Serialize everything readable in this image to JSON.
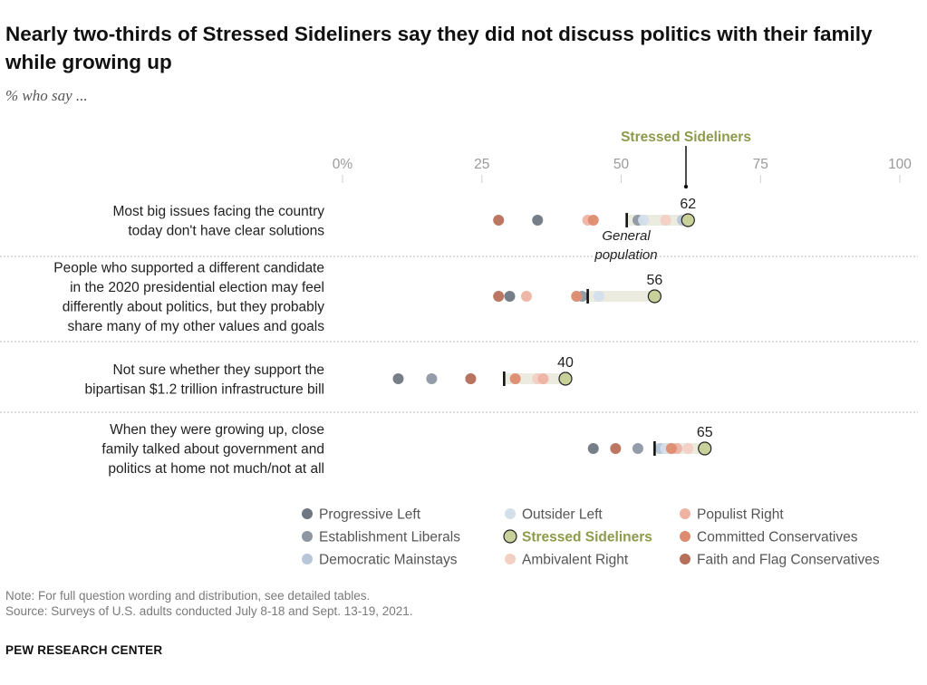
{
  "title": "Nearly two-thirds of Stressed Sideliners say they did not discuss politics with their family while growing up",
  "subtitle": "% who say ...",
  "note": "Note: For full question wording and distribution, see detailed tables.",
  "source": "Source: Surveys of U.S. adults conducted July 8-18 and Sept. 13-19, 2021.",
  "brand": "PEW RESEARCH CENTER",
  "chart_data": {
    "type": "scatter",
    "subtype": "dot-plot",
    "xlim": [
      0,
      100
    ],
    "x_ticks": [
      0,
      25,
      50,
      75,
      100
    ],
    "x_tick_labels": [
      "0%",
      "25",
      "50",
      "75",
      "100"
    ],
    "highlight_label": "Stressed Sideliners",
    "general_population_label": "General population",
    "series": [
      {
        "name": "Progressive Left",
        "color": "#6f7882"
      },
      {
        "name": "Establishment Liberals",
        "color": "#8d97a3"
      },
      {
        "name": "Democratic Mainstays",
        "color": "#b7c7d9"
      },
      {
        "name": "Outsider Left",
        "color": "#d4dfec"
      },
      {
        "name": "Stressed Sideliners",
        "color": "#c9d19b",
        "highlight_color": "#8e9a4b"
      },
      {
        "name": "Ambivalent Right",
        "color": "#f4cfc4"
      },
      {
        "name": "Populist Right",
        "color": "#eeb3a2"
      },
      {
        "name": "Committed Conservatives",
        "color": "#de8c6f"
      },
      {
        "name": "Faith and Flag Conservatives",
        "color": "#b86f59"
      }
    ],
    "rows": [
      {
        "label_lines": [
          "Most big issues facing the country",
          "today don't have clear solutions"
        ],
        "general_population": 51,
        "highlight_value": 62,
        "value_label": "62",
        "values": {
          "Progressive Left": 35,
          "Establishment Liberals": 53,
          "Democratic Mainstays": 61,
          "Outsider Left": 54,
          "Stressed Sideliners": 62,
          "Ambivalent Right": 58,
          "Populist Right": 44,
          "Committed Conservatives": 45,
          "Faith and Flag Conservatives": 28
        }
      },
      {
        "label_lines": [
          "People who supported a different candidate",
          "in the 2020 presidential election may feel",
          "differently about politics, but they probably",
          "share many of my other values and goals"
        ],
        "general_population": 44,
        "highlight_value": 56,
        "value_label": "56",
        "values": {
          "Progressive Left": 30,
          "Establishment Liberals": 43,
          "Democratic Mainstays": 42,
          "Outsider Left": 46,
          "Stressed Sideliners": 56,
          "Ambivalent Right": 56,
          "Populist Right": 33,
          "Committed Conservatives": 42,
          "Faith and Flag Conservatives": 28
        }
      },
      {
        "label_lines": [
          "Not sure whether they support the",
          "bipartisan $1.2 trillion infrastructure bill"
        ],
        "general_population": 29,
        "highlight_value": 40,
        "value_label": "40",
        "values": {
          "Progressive Left": 10,
          "Establishment Liberals": 16,
          "Democratic Mainstays": 23,
          "Outsider Left": 35,
          "Stressed Sideliners": 40,
          "Ambivalent Right": 35,
          "Populist Right": 36,
          "Committed Conservatives": 31,
          "Faith and Flag Conservatives": 23
        }
      },
      {
        "label_lines": [
          "When they were growing up, close",
          "family talked about government and",
          "politics at home not much/not at all"
        ],
        "general_population": 56,
        "highlight_value": 65,
        "value_label": "65",
        "values": {
          "Progressive Left": 45,
          "Establishment Liberals": 53,
          "Democratic Mainstays": 57,
          "Outsider Left": 58,
          "Stressed Sideliners": 65,
          "Ambivalent Right": 62,
          "Populist Right": 60,
          "Committed Conservatives": 59,
          "Faith and Flag Conservatives": 49
        }
      }
    ],
    "legend_columns": [
      [
        "Progressive Left",
        "Establishment Liberals",
        "Democratic Mainstays"
      ],
      [
        "Outsider Left",
        "Stressed Sideliners",
        "Ambivalent Right"
      ],
      [
        "Populist Right",
        "Committed Conservatives",
        "Faith and Flag Conservatives"
      ]
    ]
  }
}
